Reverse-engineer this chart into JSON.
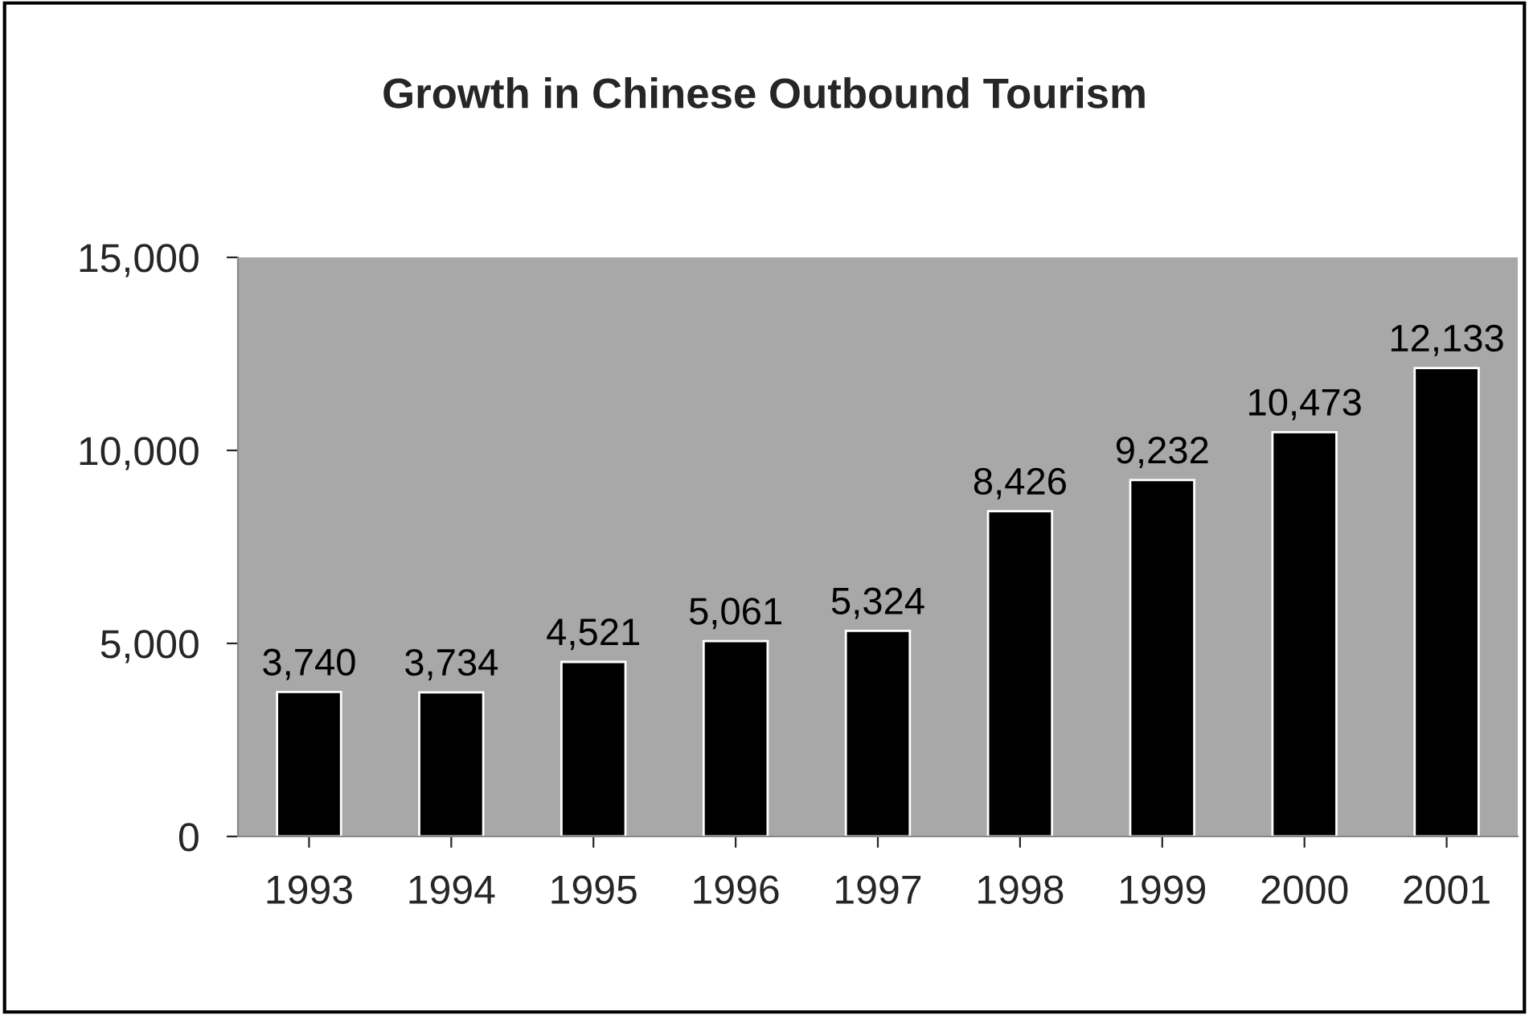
{
  "chart_data": {
    "type": "bar",
    "title": "Growth in Chinese Outbound Tourism",
    "categories": [
      "1993",
      "1994",
      "1995",
      "1996",
      "1997",
      "1998",
      "1999",
      "2000",
      "2001"
    ],
    "values": [
      3740,
      3734,
      4521,
      5061,
      5324,
      8426,
      9232,
      10473,
      12133
    ],
    "value_labels": [
      "3,740",
      "3,734",
      "4,521",
      "5,061",
      "5,324",
      "8,426",
      "9,232",
      "10,473",
      "12,133"
    ],
    "color": "#000000",
    "ylim": [
      0,
      15000
    ],
    "yticks": [
      {
        "value": 0,
        "label": "0"
      },
      {
        "value": 5000,
        "label": "5,000"
      },
      {
        "value": 10000,
        "label": "10,000"
      },
      {
        "value": 15000,
        "label": "15,000"
      }
    ],
    "grid": false,
    "legend": false
  }
}
